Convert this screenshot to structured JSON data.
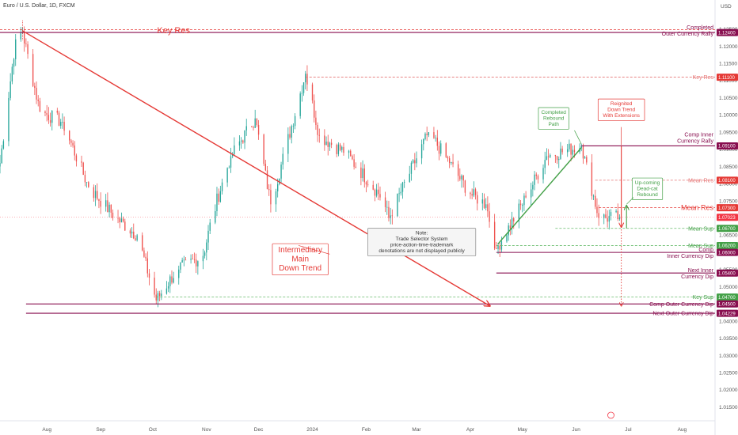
{
  "chart_data": {
    "type": "candlestick",
    "title": "Euro / U.S. Dollar, 1D, FXCM",
    "ylabel_unit": "USD",
    "ylim": [
      1.011,
      1.133
    ],
    "yticks": [
      1.015,
      1.02,
      1.025,
      1.03,
      1.035,
      1.04,
      1.045,
      1.05,
      1.055,
      1.06,
      1.065,
      1.07,
      1.075,
      1.08,
      1.085,
      1.09,
      1.095,
      1.1,
      1.105,
      1.11,
      1.115,
      1.12,
      1.125
    ],
    "ytick_labels": [
      "1.01500",
      "1.02000",
      "1.02500",
      "1.03000",
      "1.03500",
      "1.04000",
      "1.04500",
      "1.05000",
      "1.05500",
      "1.06000",
      "1.06500",
      "1.07000",
      "1.07500",
      "1.08000",
      "1.08500",
      "1.09000",
      "1.09500",
      "1.10000",
      "1.10500",
      "1.11000",
      "1.11500",
      "1.12000",
      "1.12500"
    ],
    "xlim": [
      "2023-07-05",
      "2024-08-20"
    ],
    "xticks": [
      {
        "date": "2023-08-01",
        "label": "Aug"
      },
      {
        "date": "2023-09-01",
        "label": "Sep"
      },
      {
        "date": "2023-10-01",
        "label": "Oct"
      },
      {
        "date": "2023-11-01",
        "label": "Nov"
      },
      {
        "date": "2023-12-01",
        "label": "Dec"
      },
      {
        "date": "2024-01-01",
        "label": "2024"
      },
      {
        "date": "2024-02-01",
        "label": "Feb"
      },
      {
        "date": "2024-03-01",
        "label": "Mar"
      },
      {
        "date": "2024-04-01",
        "label": "Apr"
      },
      {
        "date": "2024-05-01",
        "label": "May"
      },
      {
        "date": "2024-06-01",
        "label": "Jun"
      },
      {
        "date": "2024-07-01",
        "label": "Jul"
      },
      {
        "date": "2024-08-01",
        "label": "Aug"
      }
    ],
    "colors": {
      "up": "#26a69a",
      "down": "#ef5350",
      "purple": "#880e4f",
      "green": "#43a047",
      "red": "#e53935",
      "current": "#f23645"
    },
    "candle_anchors": [
      {
        "date": "2023-07-05",
        "close": 1.086
      },
      {
        "date": "2023-07-14",
        "close": 1.122
      },
      {
        "date": "2023-07-18",
        "close": 1.124
      },
      {
        "date": "2023-07-28",
        "close": 1.101
      },
      {
        "date": "2023-08-10",
        "close": 1.098
      },
      {
        "date": "2023-08-25",
        "close": 1.079
      },
      {
        "date": "2023-09-10",
        "close": 1.07
      },
      {
        "date": "2023-09-22",
        "close": 1.065
      },
      {
        "date": "2023-10-03",
        "close": 1.046
      },
      {
        "date": "2023-10-15",
        "close": 1.055
      },
      {
        "date": "2023-10-30",
        "close": 1.059
      },
      {
        "date": "2023-11-05",
        "close": 1.072
      },
      {
        "date": "2023-11-15",
        "close": 1.088
      },
      {
        "date": "2023-11-29",
        "close": 1.099
      },
      {
        "date": "2023-12-08",
        "close": 1.074
      },
      {
        "date": "2023-12-28",
        "close": 1.112
      },
      {
        "date": "2024-01-05",
        "close": 1.094
      },
      {
        "date": "2024-01-20",
        "close": 1.089
      },
      {
        "date": "2024-02-10",
        "close": 1.076
      },
      {
        "date": "2024-02-14",
        "close": 1.07
      },
      {
        "date": "2024-03-08",
        "close": 1.095
      },
      {
        "date": "2024-03-20",
        "close": 1.086
      },
      {
        "date": "2024-04-01",
        "close": 1.077
      },
      {
        "date": "2024-04-10",
        "close": 1.074
      },
      {
        "date": "2024-04-16",
        "close": 1.061
      },
      {
        "date": "2024-05-03",
        "close": 1.076
      },
      {
        "date": "2024-05-15",
        "close": 1.088
      },
      {
        "date": "2024-06-04",
        "close": 1.091
      },
      {
        "date": "2024-06-14",
        "close": 1.07
      },
      {
        "date": "2024-06-26",
        "close": 1.0702
      }
    ],
    "levels": [
      {
        "name": "completed-outer-currency-rally",
        "value": 1.124,
        "label": "Completed\nOuter Currency Rally",
        "tag": "1.12400",
        "style": "solid",
        "color": "#880e4f",
        "x_start": "2023-07-05"
      },
      {
        "name": "key-res-top",
        "value": 1.1248,
        "label": "Key Res",
        "tag": "",
        "style": "dashed",
        "color": "#e53935",
        "x_start": "2023-07-05"
      },
      {
        "name": "key-res",
        "value": 1.111,
        "label": "Key Res",
        "tag": "1.11100",
        "style": "dashed",
        "color": "#e57373",
        "x_start": "2023-12-28"
      },
      {
        "name": "comp-inner-currency-rally",
        "value": 1.091,
        "label": "Comp Inner\nCurrency Rally",
        "tag": "1.09100",
        "style": "solid",
        "color": "#880e4f",
        "x_start": "2024-06-04"
      },
      {
        "name": "mean-res-upper",
        "value": 1.081,
        "label": "Mean Res",
        "tag": "1.08100",
        "style": "dashed",
        "color": "#e57373",
        "x_start": "2024-06-12"
      },
      {
        "name": "mean-res",
        "value": 1.073,
        "label": "Mean Res",
        "tag": "1.07300",
        "style": "dashed",
        "color": "#e53935",
        "x_start": "2024-06-14"
      },
      {
        "name": "mean-sup",
        "value": 1.067,
        "label": "Mean Sup",
        "tag": "1.06700",
        "style": "dashed",
        "color": "#66bb6a",
        "x_start": "2024-05-20"
      },
      {
        "name": "mean-sup-lower",
        "value": 1.062,
        "label": "Mean Sup",
        "tag": "1.06200",
        "style": "dashed",
        "color": "#66bb6a",
        "x_start": "2024-04-16"
      },
      {
        "name": "comp-inner-currency-dip",
        "value": 1.06,
        "label": "Comp\nInner Currency Dip",
        "tag": "1.06000",
        "style": "solid",
        "color": "#880e4f",
        "x_start": "2024-04-16"
      },
      {
        "name": "next-inner-currency-dip",
        "value": 1.054,
        "label": "Next Inner\nCurrency Dip",
        "tag": "1.05400",
        "style": "solid",
        "color": "#880e4f",
        "x_start": "2024-04-16"
      },
      {
        "name": "key-sup",
        "value": 1.047,
        "label": "Key Sup",
        "tag": "1.04700",
        "style": "dashed",
        "color": "#66bb6a",
        "x_start": "2023-10-03"
      },
      {
        "name": "comp-outer-currency-dip",
        "value": 1.045,
        "label": "Comp Outer Currency Dip",
        "tag": "1.04500",
        "style": "solid",
        "color": "#880e4f",
        "x_start": "2023-07-20"
      },
      {
        "name": "next-outer-currency-dip",
        "value": 1.04229,
        "label": "Next Outer Currency Dip",
        "tag": "1.04229",
        "style": "solid",
        "color": "#880e4f",
        "x_start": "2023-07-20"
      }
    ],
    "current_price": {
      "value": 1.07023,
      "tag": "1.07023"
    },
    "trend_lines": [
      {
        "name": "intermediary-main-down-trend",
        "from": {
          "date": "2023-07-18",
          "value": 1.1245
        },
        "to": {
          "date": "2024-04-12",
          "value": 1.0445
        },
        "color": "#e53935",
        "arrow": true
      },
      {
        "name": "completed-rebound-path",
        "from": {
          "date": "2024-04-17",
          "value": 1.0625
        },
        "to": {
          "date": "2024-06-04",
          "value": 1.0905
        },
        "color": "#43a047",
        "arrow": false
      }
    ],
    "arrows": [
      {
        "name": "reignited-down-trend-arrow",
        "date": "2024-06-27",
        "from": 1.091,
        "to": 1.0675,
        "color": "#e53935",
        "style": "solid"
      },
      {
        "name": "extension-arrow",
        "date": "2024-06-27",
        "from": 1.0675,
        "to": 1.0445,
        "color": "#e53935",
        "style": "dotted"
      },
      {
        "name": "up-coming-dead-cat-arrow",
        "date": "2024-06-30",
        "from": 1.067,
        "to": 1.0735,
        "color": "#43a047",
        "style": "solid"
      }
    ],
    "annotations": [
      {
        "name": "key-res-title",
        "text": "Key Res",
        "date": "2023-10-13",
        "value": 1.1245,
        "color": "#e53935",
        "size": 11
      },
      {
        "name": "intermediary-main-down-trend-label",
        "text": "Intermediary\nMain\nDown Trend",
        "date": "2023-12-25",
        "value": 1.058,
        "color": "#e53935",
        "size": 10,
        "box": true
      },
      {
        "name": "note-box",
        "text": "Note:\nTrade Selector System\nprice-action-time-trademark\ndenotations are not displayed publicly",
        "date": "2024-03-04",
        "value": 1.063,
        "color": "#333333",
        "size": 6.5,
        "box": true
      },
      {
        "name": "completed-rebound-path-label",
        "text": "Completed\nRebound\nPath",
        "date": "2024-05-19",
        "value": 1.099,
        "color": "#43a047",
        "size": 6.5,
        "box": true
      },
      {
        "name": "reignited-down-trend-label",
        "text": "Reignited\nDown Trend\nWith Extensions",
        "date": "2024-06-27",
        "value": 1.1015,
        "color": "#e53935",
        "size": 6.5,
        "box": true
      },
      {
        "name": "up-coming-dead-cat-rebound-label",
        "text": "Up-coming\nDead-cat\nRebound",
        "date": "2024-07-12",
        "value": 1.0785,
        "color": "#43a047",
        "size": 6.5,
        "box": true
      }
    ]
  }
}
